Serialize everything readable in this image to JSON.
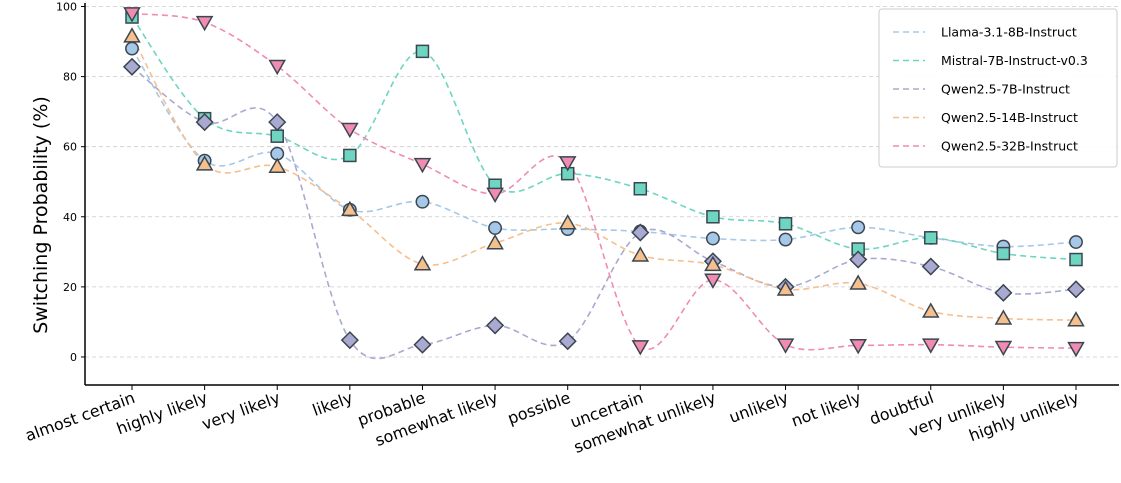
{
  "chart_data": {
    "type": "line",
    "title": "",
    "xlabel": "",
    "ylabel": "Switching Probability (%)",
    "ylim": [
      -8,
      101
    ],
    "yticks": [
      0,
      20,
      40,
      60,
      80,
      100
    ],
    "grid": "horizontal dashed",
    "legend_position": "top-right",
    "categories": [
      "almost certain",
      "highly likely",
      "very likely",
      "likely",
      "probable",
      "somewhat likely",
      "possible",
      "uncertain",
      "somewhat unlikely",
      "unlikely",
      "not likely",
      "doubtful",
      "very unlikely",
      "highly unlikely"
    ],
    "series": [
      {
        "name": "Llama-3.1-8B-Instruct",
        "color": "#a6c8e8",
        "marker": "circle",
        "values": [
          88,
          56,
          58,
          42,
          44.3,
          36.8,
          36.5,
          35.8,
          33.8,
          33.5,
          37,
          34,
          31.5,
          32.8
        ]
      },
      {
        "name": "Mistral-7B-Instruct-v0.3",
        "color": "#6dd5c0",
        "marker": "square",
        "values": [
          97,
          68,
          63,
          57.5,
          87.2,
          49,
          52.3,
          48,
          40,
          38,
          30.8,
          34,
          29.5,
          27.8
        ]
      },
      {
        "name": "Qwen2.5-7B-Instruct",
        "color": "#a9a9d2",
        "marker": "diamond",
        "values": [
          82.8,
          67,
          67,
          4.8,
          3.5,
          9,
          4.5,
          35.5,
          27.3,
          20,
          27.8,
          25.8,
          18.3,
          19.3
        ]
      },
      {
        "name": "Qwen2.5-14B-Instruct",
        "color": "#f5c08d",
        "marker": "triangle-up",
        "values": [
          91.5,
          55,
          54.3,
          42,
          26.5,
          32.5,
          38.2,
          29,
          26.3,
          19.3,
          21,
          13,
          11,
          10.5
        ]
      },
      {
        "name": "Qwen2.5-32B-Instruct",
        "color": "#f08cb2",
        "marker": "triangle-down",
        "values": [
          98,
          95.5,
          83,
          65,
          55,
          46.5,
          55.5,
          3,
          22,
          3.5,
          3.3,
          3.5,
          2.8,
          2.5
        ]
      }
    ]
  }
}
